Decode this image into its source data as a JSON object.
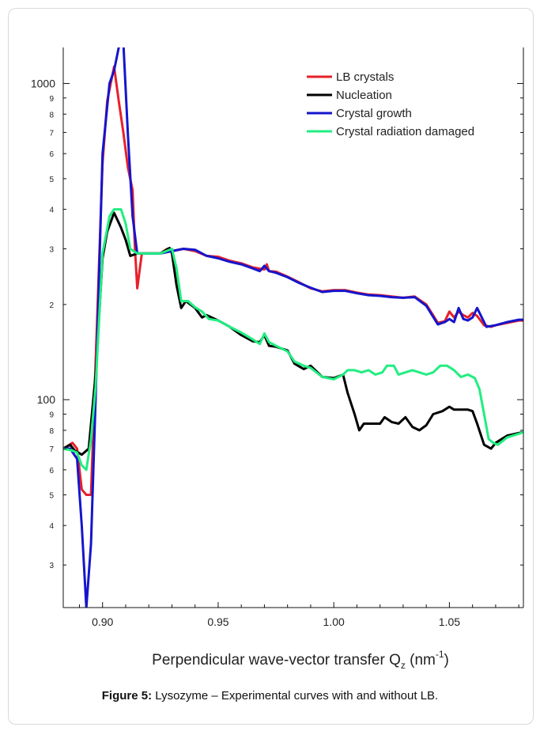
{
  "chart_data": {
    "type": "line",
    "xlabel": "Perpendicular wave-vector transfer Q",
    "xlabel_sub": "z",
    "xlabel_unit_pre": " (nm",
    "xlabel_unit_sup": "-1",
    "xlabel_unit_post": ")",
    "xlim": [
      0.883,
      1.082
    ],
    "ylim": [
      22,
      1300
    ],
    "yscale": "log",
    "grid": false,
    "legend_position": "top-right",
    "x_ticks": [
      "0.90",
      "0.95",
      "1.00",
      "1.05"
    ],
    "y_major_ticks": [
      {
        "value": 100,
        "label": "100"
      },
      {
        "value": 1000,
        "label": "1000"
      }
    ],
    "y_minor_ticks": [
      {
        "value": 30,
        "label": "3"
      },
      {
        "value": 40,
        "label": "4"
      },
      {
        "value": 50,
        "label": "5"
      },
      {
        "value": 60,
        "label": "6"
      },
      {
        "value": 70,
        "label": "7"
      },
      {
        "value": 80,
        "label": "8"
      },
      {
        "value": 90,
        "label": "9"
      },
      {
        "value": 200,
        "label": "2"
      },
      {
        "value": 300,
        "label": "3"
      },
      {
        "value": 400,
        "label": "4"
      },
      {
        "value": 500,
        "label": "5"
      },
      {
        "value": 600,
        "label": "6"
      },
      {
        "value": 700,
        "label": "7"
      },
      {
        "value": 800,
        "label": "8"
      },
      {
        "value": 900,
        "label": "9"
      }
    ],
    "series": [
      {
        "name": "LB crystals",
        "color": "#e8202a",
        "points": [
          [
            0.883,
            70
          ],
          [
            0.887,
            73
          ],
          [
            0.889,
            70
          ],
          [
            0.891,
            52
          ],
          [
            0.893,
            50
          ],
          [
            0.895,
            50
          ],
          [
            0.897,
            130
          ],
          [
            0.9,
            560
          ],
          [
            0.902,
            880
          ],
          [
            0.905,
            1130
          ],
          [
            0.907,
            880
          ],
          [
            0.909,
            700
          ],
          [
            0.911,
            540
          ],
          [
            0.913,
            460
          ],
          [
            0.914,
            300
          ],
          [
            0.915,
            225
          ],
          [
            0.917,
            290
          ],
          [
            0.92,
            290
          ],
          [
            0.925,
            290
          ],
          [
            0.928,
            300
          ],
          [
            0.93,
            295
          ],
          [
            0.935,
            300
          ],
          [
            0.94,
            295
          ],
          [
            0.945,
            285
          ],
          [
            0.95,
            283
          ],
          [
            0.955,
            275
          ],
          [
            0.96,
            270
          ],
          [
            0.965,
            262
          ],
          [
            0.97,
            258
          ],
          [
            0.971,
            268
          ],
          [
            0.972,
            255
          ],
          [
            0.975,
            254
          ],
          [
            0.98,
            245
          ],
          [
            0.985,
            235
          ],
          [
            0.99,
            225
          ],
          [
            0.995,
            220
          ],
          [
            1.0,
            222
          ],
          [
            1.005,
            222
          ],
          [
            1.01,
            218
          ],
          [
            1.015,
            215
          ],
          [
            1.02,
            214
          ],
          [
            1.025,
            212
          ],
          [
            1.03,
            210
          ],
          [
            1.035,
            212
          ],
          [
            1.04,
            200
          ],
          [
            1.045,
            175
          ],
          [
            1.048,
            177
          ],
          [
            1.05,
            190
          ],
          [
            1.052,
            182
          ],
          [
            1.054,
            190
          ],
          [
            1.056,
            185
          ],
          [
            1.058,
            182
          ],
          [
            1.06,
            188
          ],
          [
            1.062,
            184
          ],
          [
            1.065,
            172
          ],
          [
            1.068,
            170
          ],
          [
            1.07,
            172
          ],
          [
            1.075,
            175
          ],
          [
            1.08,
            178
          ],
          [
            1.082,
            178
          ]
        ]
      },
      {
        "name": "Nucleation",
        "color": "#000000",
        "points": [
          [
            0.883,
            70
          ],
          [
            0.886,
            72
          ],
          [
            0.888,
            69
          ],
          [
            0.891,
            67
          ],
          [
            0.894,
            70
          ],
          [
            0.897,
            120
          ],
          [
            0.9,
            280
          ],
          [
            0.902,
            340
          ],
          [
            0.905,
            390
          ],
          [
            0.908,
            350
          ],
          [
            0.91,
            320
          ],
          [
            0.912,
            285
          ],
          [
            0.915,
            290
          ],
          [
            0.92,
            290
          ],
          [
            0.925,
            290
          ],
          [
            0.929,
            302
          ],
          [
            0.93,
            290
          ],
          [
            0.932,
            230
          ],
          [
            0.934,
            195
          ],
          [
            0.936,
            205
          ],
          [
            0.938,
            200
          ],
          [
            0.94,
            195
          ],
          [
            0.943,
            182
          ],
          [
            0.945,
            185
          ],
          [
            0.95,
            178
          ],
          [
            0.955,
            170
          ],
          [
            0.96,
            160
          ],
          [
            0.965,
            153
          ],
          [
            0.968,
            152
          ],
          [
            0.97,
            160
          ],
          [
            0.972,
            148
          ],
          [
            0.975,
            147
          ],
          [
            0.98,
            143
          ],
          [
            0.983,
            130
          ],
          [
            0.987,
            125
          ],
          [
            0.99,
            128
          ],
          [
            0.995,
            118
          ],
          [
            1.0,
            117
          ],
          [
            1.004,
            120
          ],
          [
            1.006,
            105
          ],
          [
            1.009,
            90
          ],
          [
            1.011,
            80
          ],
          [
            1.013,
            84
          ],
          [
            1.015,
            84
          ],
          [
            1.02,
            84
          ],
          [
            1.022,
            88
          ],
          [
            1.025,
            85
          ],
          [
            1.028,
            84
          ],
          [
            1.031,
            88
          ],
          [
            1.034,
            82
          ],
          [
            1.037,
            80
          ],
          [
            1.04,
            83
          ],
          [
            1.043,
            90
          ],
          [
            1.047,
            92
          ],
          [
            1.05,
            95
          ],
          [
            1.052,
            93
          ],
          [
            1.055,
            93
          ],
          [
            1.058,
            93
          ],
          [
            1.06,
            92
          ],
          [
            1.062,
            84
          ],
          [
            1.065,
            72
          ],
          [
            1.068,
            70
          ],
          [
            1.07,
            73
          ],
          [
            1.075,
            77
          ],
          [
            1.082,
            79
          ]
        ]
      },
      {
        "name": "Crystal growth",
        "color": "#1515cc",
        "points": [
          [
            0.883,
            70
          ],
          [
            0.886,
            70
          ],
          [
            0.889,
            65
          ],
          [
            0.891,
            40
          ],
          [
            0.893,
            22
          ],
          [
            0.895,
            35
          ],
          [
            0.897,
            100
          ],
          [
            0.9,
            600
          ],
          [
            0.903,
            1000
          ],
          [
            0.905,
            1100
          ],
          [
            0.907,
            1300
          ],
          [
            0.909,
            1350
          ],
          [
            0.911,
            680
          ],
          [
            0.913,
            380
          ],
          [
            0.915,
            290
          ],
          [
            0.92,
            290
          ],
          [
            0.925,
            290
          ],
          [
            0.93,
            295
          ],
          [
            0.935,
            300
          ],
          [
            0.94,
            298
          ],
          [
            0.945,
            285
          ],
          [
            0.95,
            280
          ],
          [
            0.955,
            273
          ],
          [
            0.96,
            268
          ],
          [
            0.965,
            260
          ],
          [
            0.968,
            255
          ],
          [
            0.97,
            265
          ],
          [
            0.972,
            255
          ],
          [
            0.975,
            252
          ],
          [
            0.98,
            244
          ],
          [
            0.985,
            234
          ],
          [
            0.99,
            226
          ],
          [
            0.995,
            219
          ],
          [
            1.0,
            221
          ],
          [
            1.005,
            221
          ],
          [
            1.01,
            217
          ],
          [
            1.015,
            214
          ],
          [
            1.02,
            213
          ],
          [
            1.025,
            211
          ],
          [
            1.03,
            210
          ],
          [
            1.035,
            211
          ],
          [
            1.04,
            198
          ],
          [
            1.045,
            173
          ],
          [
            1.048,
            176
          ],
          [
            1.05,
            180
          ],
          [
            1.052,
            176
          ],
          [
            1.054,
            195
          ],
          [
            1.056,
            180
          ],
          [
            1.058,
            178
          ],
          [
            1.06,
            182
          ],
          [
            1.062,
            195
          ],
          [
            1.064,
            182
          ],
          [
            1.066,
            170
          ],
          [
            1.07,
            172
          ],
          [
            1.075,
            176
          ],
          [
            1.08,
            179
          ],
          [
            1.082,
            179
          ]
        ]
      },
      {
        "name": "Crystal radiation damaged",
        "color": "#20ee80",
        "points": [
          [
            0.883,
            70
          ],
          [
            0.887,
            69
          ],
          [
            0.889,
            68
          ],
          [
            0.891,
            62
          ],
          [
            0.893,
            60
          ],
          [
            0.895,
            75
          ],
          [
            0.897,
            110
          ],
          [
            0.9,
            290
          ],
          [
            0.903,
            380
          ],
          [
            0.905,
            400
          ],
          [
            0.908,
            400
          ],
          [
            0.91,
            360
          ],
          [
            0.912,
            300
          ],
          [
            0.915,
            290
          ],
          [
            0.92,
            290
          ],
          [
            0.925,
            290
          ],
          [
            0.93,
            300
          ],
          [
            0.932,
            260
          ],
          [
            0.934,
            205
          ],
          [
            0.937,
            205
          ],
          [
            0.94,
            196
          ],
          [
            0.943,
            190
          ],
          [
            0.946,
            180
          ],
          [
            0.95,
            178
          ],
          [
            0.955,
            170
          ],
          [
            0.96,
            163
          ],
          [
            0.965,
            155
          ],
          [
            0.968,
            150
          ],
          [
            0.97,
            162
          ],
          [
            0.972,
            152
          ],
          [
            0.975,
            148
          ],
          [
            0.98,
            142
          ],
          [
            0.983,
            132
          ],
          [
            0.987,
            128
          ],
          [
            0.99,
            126
          ],
          [
            0.995,
            118
          ],
          [
            1.0,
            116
          ],
          [
            1.004,
            120
          ],
          [
            1.006,
            124
          ],
          [
            1.009,
            124
          ],
          [
            1.012,
            122
          ],
          [
            1.015,
            124
          ],
          [
            1.018,
            120
          ],
          [
            1.021,
            122
          ],
          [
            1.023,
            128
          ],
          [
            1.026,
            128
          ],
          [
            1.028,
            120
          ],
          [
            1.031,
            122
          ],
          [
            1.034,
            124
          ],
          [
            1.037,
            122
          ],
          [
            1.04,
            120
          ],
          [
            1.043,
            122
          ],
          [
            1.046,
            128
          ],
          [
            1.049,
            128
          ],
          [
            1.052,
            124
          ],
          [
            1.055,
            118
          ],
          [
            1.058,
            120
          ],
          [
            1.061,
            117
          ],
          [
            1.063,
            108
          ],
          [
            1.065,
            90
          ],
          [
            1.067,
            75
          ],
          [
            1.069,
            73
          ],
          [
            1.071,
            72
          ],
          [
            1.075,
            76
          ],
          [
            1.08,
            78
          ],
          [
            1.082,
            79
          ]
        ]
      }
    ]
  },
  "caption": {
    "label": "Figure 5:",
    "text": " Lysozyme – Experimental curves with and without LB."
  }
}
